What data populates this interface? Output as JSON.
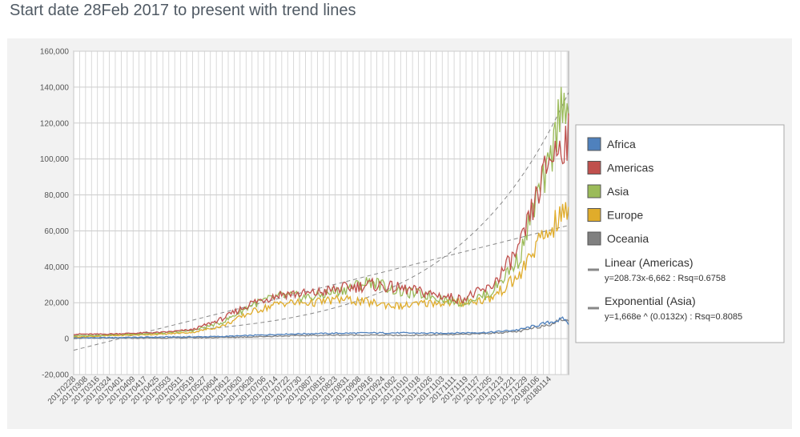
{
  "title": "Start date 28Feb 2017 to present with trend lines",
  "chart_data": {
    "type": "line",
    "title": "Start date 28Feb 2017 to present with trend lines",
    "xlabel": "",
    "ylabel": "",
    "ylim": [
      -20000,
      160000
    ],
    "y_ticks": [
      "-20,000",
      "0",
      "20,000",
      "40,000",
      "60,000",
      "80,000",
      "100,000",
      "120,000",
      "140,000",
      "160,000"
    ],
    "y_tick_values": [
      -20000,
      0,
      20000,
      40000,
      60000,
      80000,
      100000,
      120000,
      140000,
      160000
    ],
    "x_tick_labels": [
      "20170228",
      "20170308",
      "20170316",
      "20170324",
      "20170401",
      "20170409",
      "20170417",
      "20170425",
      "20170503",
      "20170511",
      "20170519",
      "20170527",
      "20170604",
      "20170612",
      "20170620",
      "20170628",
      "20170706",
      "20170714",
      "20170722",
      "20170730",
      "20170807",
      "20170815",
      "20170823",
      "20170831",
      "20170908",
      "20170916",
      "20170924",
      "20171002",
      "20171010",
      "20171018",
      "20171026",
      "20171103",
      "20171111",
      "20171119",
      "20171127",
      "20171205",
      "20171213",
      "20171221",
      "20171229",
      "20180106",
      "20180114"
    ],
    "grid": true,
    "legend_position": "right",
    "x_day_sample": [
      0,
      20,
      40,
      60,
      80,
      100,
      120,
      140,
      160,
      180,
      200,
      220,
      240,
      260,
      280,
      300,
      310,
      320,
      330,
      333
    ],
    "series": [
      {
        "name": "Africa",
        "color": "#4f81bd",
        "values": [
          500,
          500,
          700,
          900,
          1000,
          1200,
          1800,
          2500,
          2800,
          3000,
          3200,
          3200,
          3000,
          3200,
          3500,
          5000,
          7000,
          9000,
          11000,
          8500
        ]
      },
      {
        "name": "Americas",
        "color": "#c0504d",
        "values": [
          2500,
          2500,
          3000,
          3500,
          5000,
          11000,
          20000,
          25000,
          25000,
          28000,
          30000,
          28000,
          25000,
          22000,
          28000,
          50000,
          75000,
          100000,
          110000,
          112000
        ]
      },
      {
        "name": "Asia",
        "color": "#9bbb59",
        "values": [
          1500,
          2000,
          2500,
          3000,
          4500,
          9000,
          19000,
          24000,
          23000,
          27000,
          32000,
          26000,
          24000,
          20000,
          25000,
          45000,
          75000,
          95000,
          140000,
          120000
        ]
      },
      {
        "name": "Europe",
        "color": "#e0ac2b",
        "values": [
          1000,
          1500,
          2000,
          2500,
          3500,
          7000,
          15000,
          20000,
          20000,
          22000,
          20000,
          18000,
          20000,
          20000,
          22000,
          35000,
          50000,
          60000,
          70000,
          72000
        ]
      },
      {
        "name": "Oceania",
        "color": "#808080",
        "values": [
          300,
          300,
          300,
          400,
          500,
          700,
          1000,
          1500,
          1800,
          2000,
          2000,
          1800,
          2000,
          2300,
          3000,
          4000,
          6000,
          8000,
          11000,
          9000
        ]
      }
    ],
    "trendlines": [
      {
        "name": "Linear (Americas)",
        "equation": "y=208.73x-6,662 : Rsq=0.6758",
        "type": "linear",
        "slope": 208.73,
        "intercept": -6662
      },
      {
        "name": "Exponential (Asia)",
        "equation": "y=1,668e ^ (0.0132x) : Rsq=0.8085",
        "type": "exponential",
        "a": 1668,
        "b": 0.0132
      }
    ]
  }
}
